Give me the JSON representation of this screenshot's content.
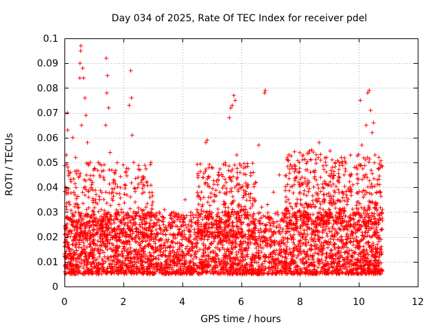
{
  "chart_data": {
    "type": "scatter",
    "title": "Day 034 of 2025, Rate Of TEC Index for receiver pdel",
    "xlabel": "GPS time / hours",
    "ylabel": "ROTI / TECUs",
    "xlim": [
      0,
      12
    ],
    "ylim": [
      0,
      0.1
    ],
    "grid": true,
    "marker": "plus",
    "color": "#ff0000",
    "xticks": [
      {
        "value": 0,
        "label": "0"
      },
      {
        "value": 2,
        "label": "2"
      },
      {
        "value": 4,
        "label": "4"
      },
      {
        "value": 6,
        "label": "6"
      },
      {
        "value": 8,
        "label": "8"
      },
      {
        "value": 10,
        "label": "10"
      },
      {
        "value": 12,
        "label": "12"
      }
    ],
    "yticks": [
      {
        "value": 0,
        "label": "0"
      },
      {
        "value": 0.01,
        "label": "0.01"
      },
      {
        "value": 0.02,
        "label": "0.02"
      },
      {
        "value": 0.03,
        "label": "0.03"
      },
      {
        "value": 0.04,
        "label": "0.04"
      },
      {
        "value": 0.05,
        "label": "0.05"
      },
      {
        "value": 0.06,
        "label": "0.06"
      },
      {
        "value": 0.07,
        "label": "0.07"
      },
      {
        "value": 0.08,
        "label": "0.08"
      },
      {
        "value": 0.09,
        "label": "0.09"
      },
      {
        "value": 0.1,
        "label": "0.1"
      }
    ],
    "series": [
      {
        "name": "ROTI",
        "points": [
          [
            0.02,
            0.012
          ],
          [
            0.05,
            0.008
          ],
          [
            0.05,
            0.04
          ],
          [
            0.06,
            0.053
          ],
          [
            0.08,
            0.031
          ],
          [
            0.1,
            0.07
          ],
          [
            0.11,
            0.063
          ],
          [
            0.12,
            0.021
          ],
          [
            0.15,
            0.034
          ],
          [
            0.18,
            0.015
          ],
          [
            0.2,
            0.046
          ],
          [
            0.22,
            0.027
          ],
          [
            0.25,
            0.011
          ],
          [
            0.28,
            0.06
          ],
          [
            0.3,
            0.019
          ],
          [
            0.32,
            0.038
          ],
          [
            0.35,
            0.013
          ],
          [
            0.38,
            0.052
          ],
          [
            0.4,
            0.024
          ],
          [
            0.42,
            0.009
          ],
          [
            0.45,
            0.033
          ],
          [
            0.48,
            0.044
          ],
          [
            0.5,
            0.017
          ],
          [
            0.52,
            0.084
          ],
          [
            0.53,
            0.09
          ],
          [
            0.55,
            0.095
          ],
          [
            0.56,
            0.097
          ],
          [
            0.58,
            0.065
          ],
          [
            0.6,
            0.022
          ],
          [
            0.62,
            0.088
          ],
          [
            0.65,
            0.084
          ],
          [
            0.67,
            0.043
          ],
          [
            0.7,
            0.076
          ],
          [
            0.72,
            0.014
          ],
          [
            0.73,
            0.069
          ],
          [
            0.75,
            0.031
          ],
          [
            0.78,
            0.058
          ],
          [
            0.8,
            0.01
          ],
          [
            0.82,
            0.036
          ],
          [
            0.85,
            0.026
          ],
          [
            0.88,
            0.05
          ],
          [
            0.9,
            0.016
          ],
          [
            0.92,
            0.041
          ],
          [
            0.95,
            0.012
          ],
          [
            0.98,
            0.029
          ],
          [
            1.0,
            0.019
          ],
          [
            1.05,
            0.035
          ],
          [
            1.1,
            0.011
          ],
          [
            1.15,
            0.05
          ],
          [
            1.2,
            0.023
          ],
          [
            1.25,
            0.031
          ],
          [
            1.3,
            0.008
          ],
          [
            1.35,
            0.043
          ],
          [
            1.4,
            0.065
          ],
          [
            1.42,
            0.092
          ],
          [
            1.44,
            0.078
          ],
          [
            1.46,
            0.085
          ],
          [
            1.5,
            0.072
          ],
          [
            1.52,
            0.027
          ],
          [
            1.55,
            0.054
          ],
          [
            1.6,
            0.015
          ],
          [
            1.65,
            0.038
          ],
          [
            1.7,
            0.046
          ],
          [
            1.75,
            0.021
          ],
          [
            1.8,
            0.012
          ],
          [
            1.85,
            0.033
          ],
          [
            1.9,
            0.026
          ],
          [
            1.95,
            0.009
          ],
          [
            2.0,
            0.018
          ],
          [
            2.05,
            0.041
          ],
          [
            2.1,
            0.029
          ],
          [
            2.15,
            0.015
          ],
          [
            2.2,
            0.073
          ],
          [
            2.25,
            0.087
          ],
          [
            2.28,
            0.076
          ],
          [
            2.3,
            0.061
          ],
          [
            2.35,
            0.05
          ],
          [
            2.4,
            0.034
          ],
          [
            2.45,
            0.022
          ],
          [
            2.5,
            0.044
          ],
          [
            2.55,
            0.013
          ],
          [
            2.6,
            0.031
          ],
          [
            2.65,
            0.025
          ],
          [
            2.7,
            0.038
          ],
          [
            2.75,
            0.016
          ],
          [
            2.8,
            0.042
          ],
          [
            2.85,
            0.011
          ],
          [
            2.9,
            0.028
          ],
          [
            2.95,
            0.019
          ],
          [
            3.0,
            0.034
          ],
          [
            3.1,
            0.014
          ],
          [
            3.2,
            0.027
          ],
          [
            3.3,
            0.009
          ],
          [
            3.4,
            0.031
          ],
          [
            3.5,
            0.018
          ],
          [
            3.6,
            0.024
          ],
          [
            3.7,
            0.012
          ],
          [
            3.8,
            0.029
          ],
          [
            3.9,
            0.016
          ],
          [
            4.0,
            0.022
          ],
          [
            4.1,
            0.035
          ],
          [
            4.2,
            0.013
          ],
          [
            4.3,
            0.027
          ],
          [
            4.4,
            0.019
          ],
          [
            4.5,
            0.031
          ],
          [
            4.6,
            0.015
          ],
          [
            4.7,
            0.044
          ],
          [
            4.8,
            0.058
          ],
          [
            4.85,
            0.059
          ],
          [
            4.9,
            0.036
          ],
          [
            5.0,
            0.048
          ],
          [
            5.1,
            0.022
          ],
          [
            5.2,
            0.041
          ],
          [
            5.3,
            0.018
          ],
          [
            5.4,
            0.033
          ],
          [
            5.5,
            0.026
          ],
          [
            5.6,
            0.068
          ],
          [
            5.65,
            0.072
          ],
          [
            5.7,
            0.073
          ],
          [
            5.75,
            0.077
          ],
          [
            5.8,
            0.075
          ],
          [
            5.85,
            0.053
          ],
          [
            5.9,
            0.039
          ],
          [
            5.95,
            0.021
          ],
          [
            6.0,
            0.031
          ],
          [
            6.1,
            0.015
          ],
          [
            6.2,
            0.028
          ],
          [
            6.3,
            0.036
          ],
          [
            6.4,
            0.019
          ],
          [
            6.5,
            0.042
          ],
          [
            6.6,
            0.057
          ],
          [
            6.7,
            0.032
          ],
          [
            6.75,
            0.018
          ],
          [
            6.8,
            0.078
          ],
          [
            6.82,
            0.079
          ],
          [
            6.85,
            0.025
          ],
          [
            6.9,
            0.033
          ],
          [
            7.0,
            0.016
          ],
          [
            7.1,
            0.038
          ],
          [
            7.2,
            0.024
          ],
          [
            7.3,
            0.045
          ],
          [
            7.4,
            0.012
          ],
          [
            7.5,
            0.029
          ],
          [
            7.6,
            0.035
          ],
          [
            7.7,
            0.019
          ],
          [
            7.8,
            0.041
          ],
          [
            7.9,
            0.027
          ],
          [
            8.0,
            0.038
          ],
          [
            8.1,
            0.021
          ],
          [
            8.2,
            0.047
          ],
          [
            8.3,
            0.033
          ],
          [
            8.4,
            0.055
          ],
          [
            8.5,
            0.046
          ],
          [
            8.6,
            0.041
          ],
          [
            8.65,
            0.058
          ],
          [
            8.7,
            0.044
          ],
          [
            8.8,
            0.037
          ],
          [
            8.9,
            0.052
          ],
          [
            9.0,
            0.031
          ],
          [
            9.1,
            0.048
          ],
          [
            9.2,
            0.026
          ],
          [
            9.3,
            0.039
          ],
          [
            9.4,
            0.018
          ],
          [
            9.5,
            0.045
          ],
          [
            9.6,
            0.033
          ],
          [
            9.7,
            0.024
          ],
          [
            9.8,
            0.041
          ],
          [
            9.9,
            0.029
          ],
          [
            10.0,
            0.049
          ],
          [
            10.05,
            0.075
          ],
          [
            10.1,
            0.057
          ],
          [
            10.15,
            0.036
          ],
          [
            10.2,
            0.044
          ],
          [
            10.25,
            0.065
          ],
          [
            10.3,
            0.078
          ],
          [
            10.35,
            0.079
          ],
          [
            10.4,
            0.071
          ],
          [
            10.45,
            0.062
          ],
          [
            10.5,
            0.066
          ],
          [
            10.55,
            0.053
          ],
          [
            10.6,
            0.038
          ],
          [
            10.65,
            0.025
          ],
          [
            10.7,
            0.041
          ],
          [
            10.75,
            0.019
          ],
          [
            10.8,
            0.031
          ]
        ]
      }
    ],
    "density_bands": [
      {
        "x0": 0.0,
        "x1": 10.8,
        "ymin": 0.005,
        "ymax": 0.03,
        "count": 3400
      },
      {
        "x0": 0.0,
        "x1": 3.0,
        "ymin": 0.02,
        "ymax": 0.05,
        "count": 350
      },
      {
        "x0": 4.5,
        "x1": 6.5,
        "ymin": 0.02,
        "ymax": 0.05,
        "count": 300
      },
      {
        "x0": 7.5,
        "x1": 10.8,
        "ymin": 0.025,
        "ymax": 0.055,
        "count": 500
      }
    ]
  }
}
